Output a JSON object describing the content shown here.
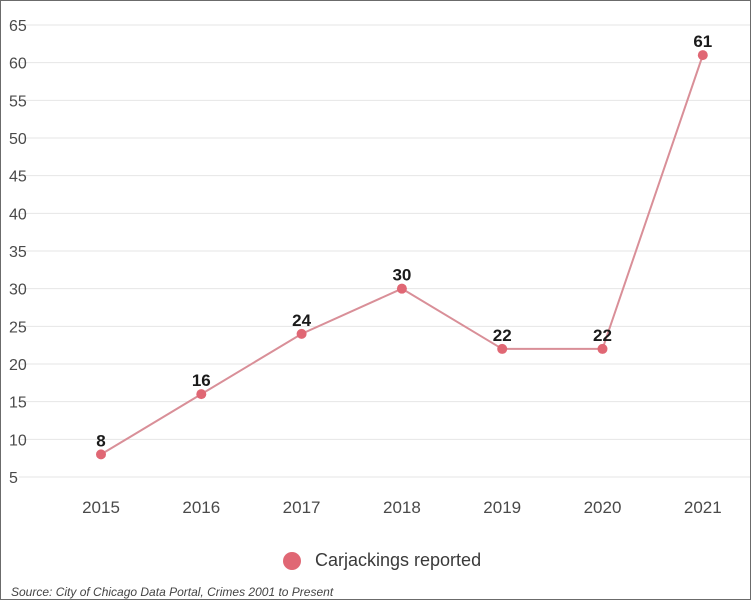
{
  "colors": {
    "series": "#e06774",
    "line": "#d98f98",
    "grid": "#e6e6e6"
  },
  "chart_data": {
    "type": "line",
    "categories": [
      "2015",
      "2016",
      "2017",
      "2018",
      "2019",
      "2020",
      "2021"
    ],
    "series": [
      {
        "name": "Carjackings reported",
        "values": [
          8,
          16,
          24,
          30,
          22,
          22,
          61
        ]
      }
    ],
    "yticks": [
      5,
      10,
      15,
      20,
      25,
      30,
      35,
      40,
      45,
      50,
      55,
      60,
      65
    ],
    "ylim": [
      5,
      65
    ],
    "grid": true,
    "legend": "bottom-center",
    "title": "",
    "xlabel": "",
    "ylabel": ""
  },
  "source": "Source: City of Chicago Data Portal, Crimes 2001 to Present"
}
